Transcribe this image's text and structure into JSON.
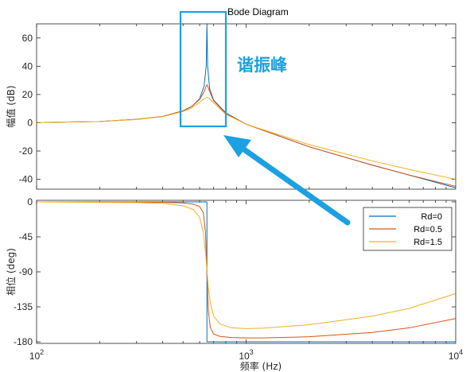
{
  "colors": {
    "series": [
      "#0072BD",
      "#D95319",
      "#EDB120"
    ],
    "annotation": "#1BA1E2",
    "axes": "#262626",
    "grid": "#ffffff"
  },
  "chart_data": [
    {
      "type": "line",
      "panel": "magnitude",
      "title": "Bode Diagram",
      "xlabel": "",
      "ylabel": "幅值 (dB)",
      "xscale": "log",
      "xlim": [
        100,
        10000
      ],
      "ylim": [
        -47,
        70
      ],
      "yticks": [
        -40,
        -20,
        0,
        20,
        40,
        60
      ],
      "resonance_hz": 650,
      "series": [
        {
          "name": "Rd=0",
          "x": [
            100,
            200,
            300,
            400,
            500,
            550,
            600,
            630,
            645,
            650,
            655,
            670,
            700,
            800,
            1000,
            2000,
            4000,
            6000,
            10000
          ],
          "values": [
            0.2,
            0.9,
            2.4,
            4.5,
            8.5,
            11.5,
            17,
            26,
            40,
            70,
            40,
            24,
            16,
            7,
            -1,
            -17,
            -30,
            -37,
            -46
          ]
        },
        {
          "name": "Rd=0.5",
          "x": [
            100,
            200,
            300,
            400,
            500,
            550,
            600,
            630,
            645,
            650,
            655,
            670,
            700,
            800,
            1000,
            2000,
            4000,
            6000,
            10000
          ],
          "values": [
            0.2,
            0.9,
            2.4,
            4.5,
            8.5,
            11.5,
            16.5,
            22,
            26,
            27,
            26,
            22,
            15.5,
            6.5,
            -1,
            -17,
            -30,
            -37,
            -45
          ]
        },
        {
          "name": "Rd=1.5",
          "x": [
            100,
            200,
            300,
            400,
            500,
            550,
            600,
            630,
            650,
            670,
            700,
            800,
            1000,
            2000,
            4000,
            6000,
            10000
          ],
          "values": [
            0.2,
            0.9,
            2.3,
            4.3,
            8,
            10.5,
            14.5,
            17,
            18,
            17,
            14,
            6,
            -1,
            -15.5,
            -27,
            -33,
            -40
          ]
        }
      ]
    },
    {
      "type": "line",
      "panel": "phase",
      "title": "",
      "xlabel": "频率 (Hz)",
      "ylabel": "相位 (deg)",
      "xscale": "log",
      "xlim": [
        100,
        10000
      ],
      "ylim": [
        -182,
        2
      ],
      "yticks": [
        -180,
        -135,
        -90,
        -45,
        0
      ],
      "xticks": [
        100,
        1000,
        10000
      ],
      "xtick_labels": [
        {
          "base": "10",
          "exp": "2"
        },
        {
          "base": "10",
          "exp": "3"
        },
        {
          "base": "10",
          "exp": "4"
        }
      ],
      "legend_position": "right",
      "series": [
        {
          "name": "Rd=0",
          "x": [
            100,
            649.9,
            650.1,
            10000
          ],
          "values": [
            0,
            0,
            -180,
            -180
          ]
        },
        {
          "name": "Rd=0.5",
          "x": [
            100,
            300,
            400,
            500,
            560,
            600,
            625,
            640,
            650,
            660,
            675,
            700,
            750,
            850,
            1000,
            1200,
            2000,
            4000,
            6000,
            10000
          ],
          "values": [
            0,
            -0.3,
            -0.6,
            -1.5,
            -3,
            -6,
            -14,
            -40,
            -90,
            -140,
            -162,
            -170,
            -173,
            -174.5,
            -175,
            -175,
            -173.5,
            -168,
            -162,
            -150
          ]
        },
        {
          "name": "Rd=1.5",
          "x": [
            100,
            300,
            400,
            500,
            560,
            600,
            625,
            640,
            650,
            660,
            675,
            700,
            750,
            850,
            1000,
            1200,
            2000,
            4000,
            6000,
            10000
          ],
          "values": [
            0,
            -1,
            -2,
            -5,
            -10,
            -20,
            -40,
            -65,
            -88,
            -110,
            -130,
            -147,
            -157,
            -162,
            -163,
            -162.5,
            -158,
            -147,
            -137,
            -118
          ]
        }
      ]
    }
  ],
  "annotation": {
    "label": "谐振峰"
  }
}
